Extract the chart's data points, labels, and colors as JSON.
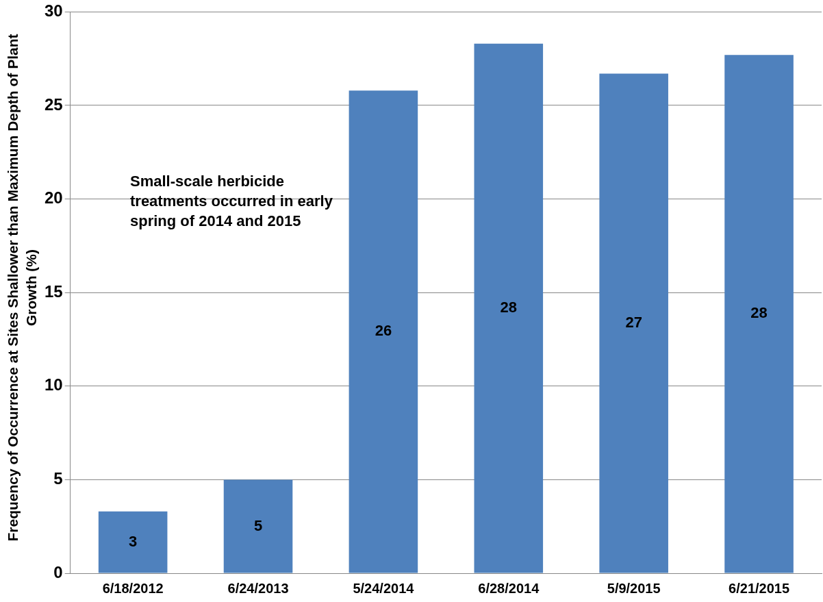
{
  "chart_data": {
    "type": "bar",
    "ylabel": "Frequency of Occurrence at Sites Shallower than Maximum Depth of Plant Growth (%)",
    "categories": [
      "6/18/2012",
      "6/24/2013",
      "5/24/2014",
      "6/28/2014",
      "5/9/2015",
      "6/21/2015"
    ],
    "values": [
      3.3,
      5.0,
      25.8,
      28.3,
      26.7,
      27.7
    ],
    "value_labels": [
      "3",
      "5",
      "26",
      "28",
      "27",
      "28"
    ],
    "color": "#4f81bd",
    "ylim": [
      0,
      30
    ],
    "yticks": [
      0,
      5,
      10,
      15,
      20,
      25,
      30
    ],
    "grid": "y",
    "legend": false,
    "annotations": [
      "Small-scale herbicide treatments occurred in early spring of 2014 and 2015"
    ]
  }
}
